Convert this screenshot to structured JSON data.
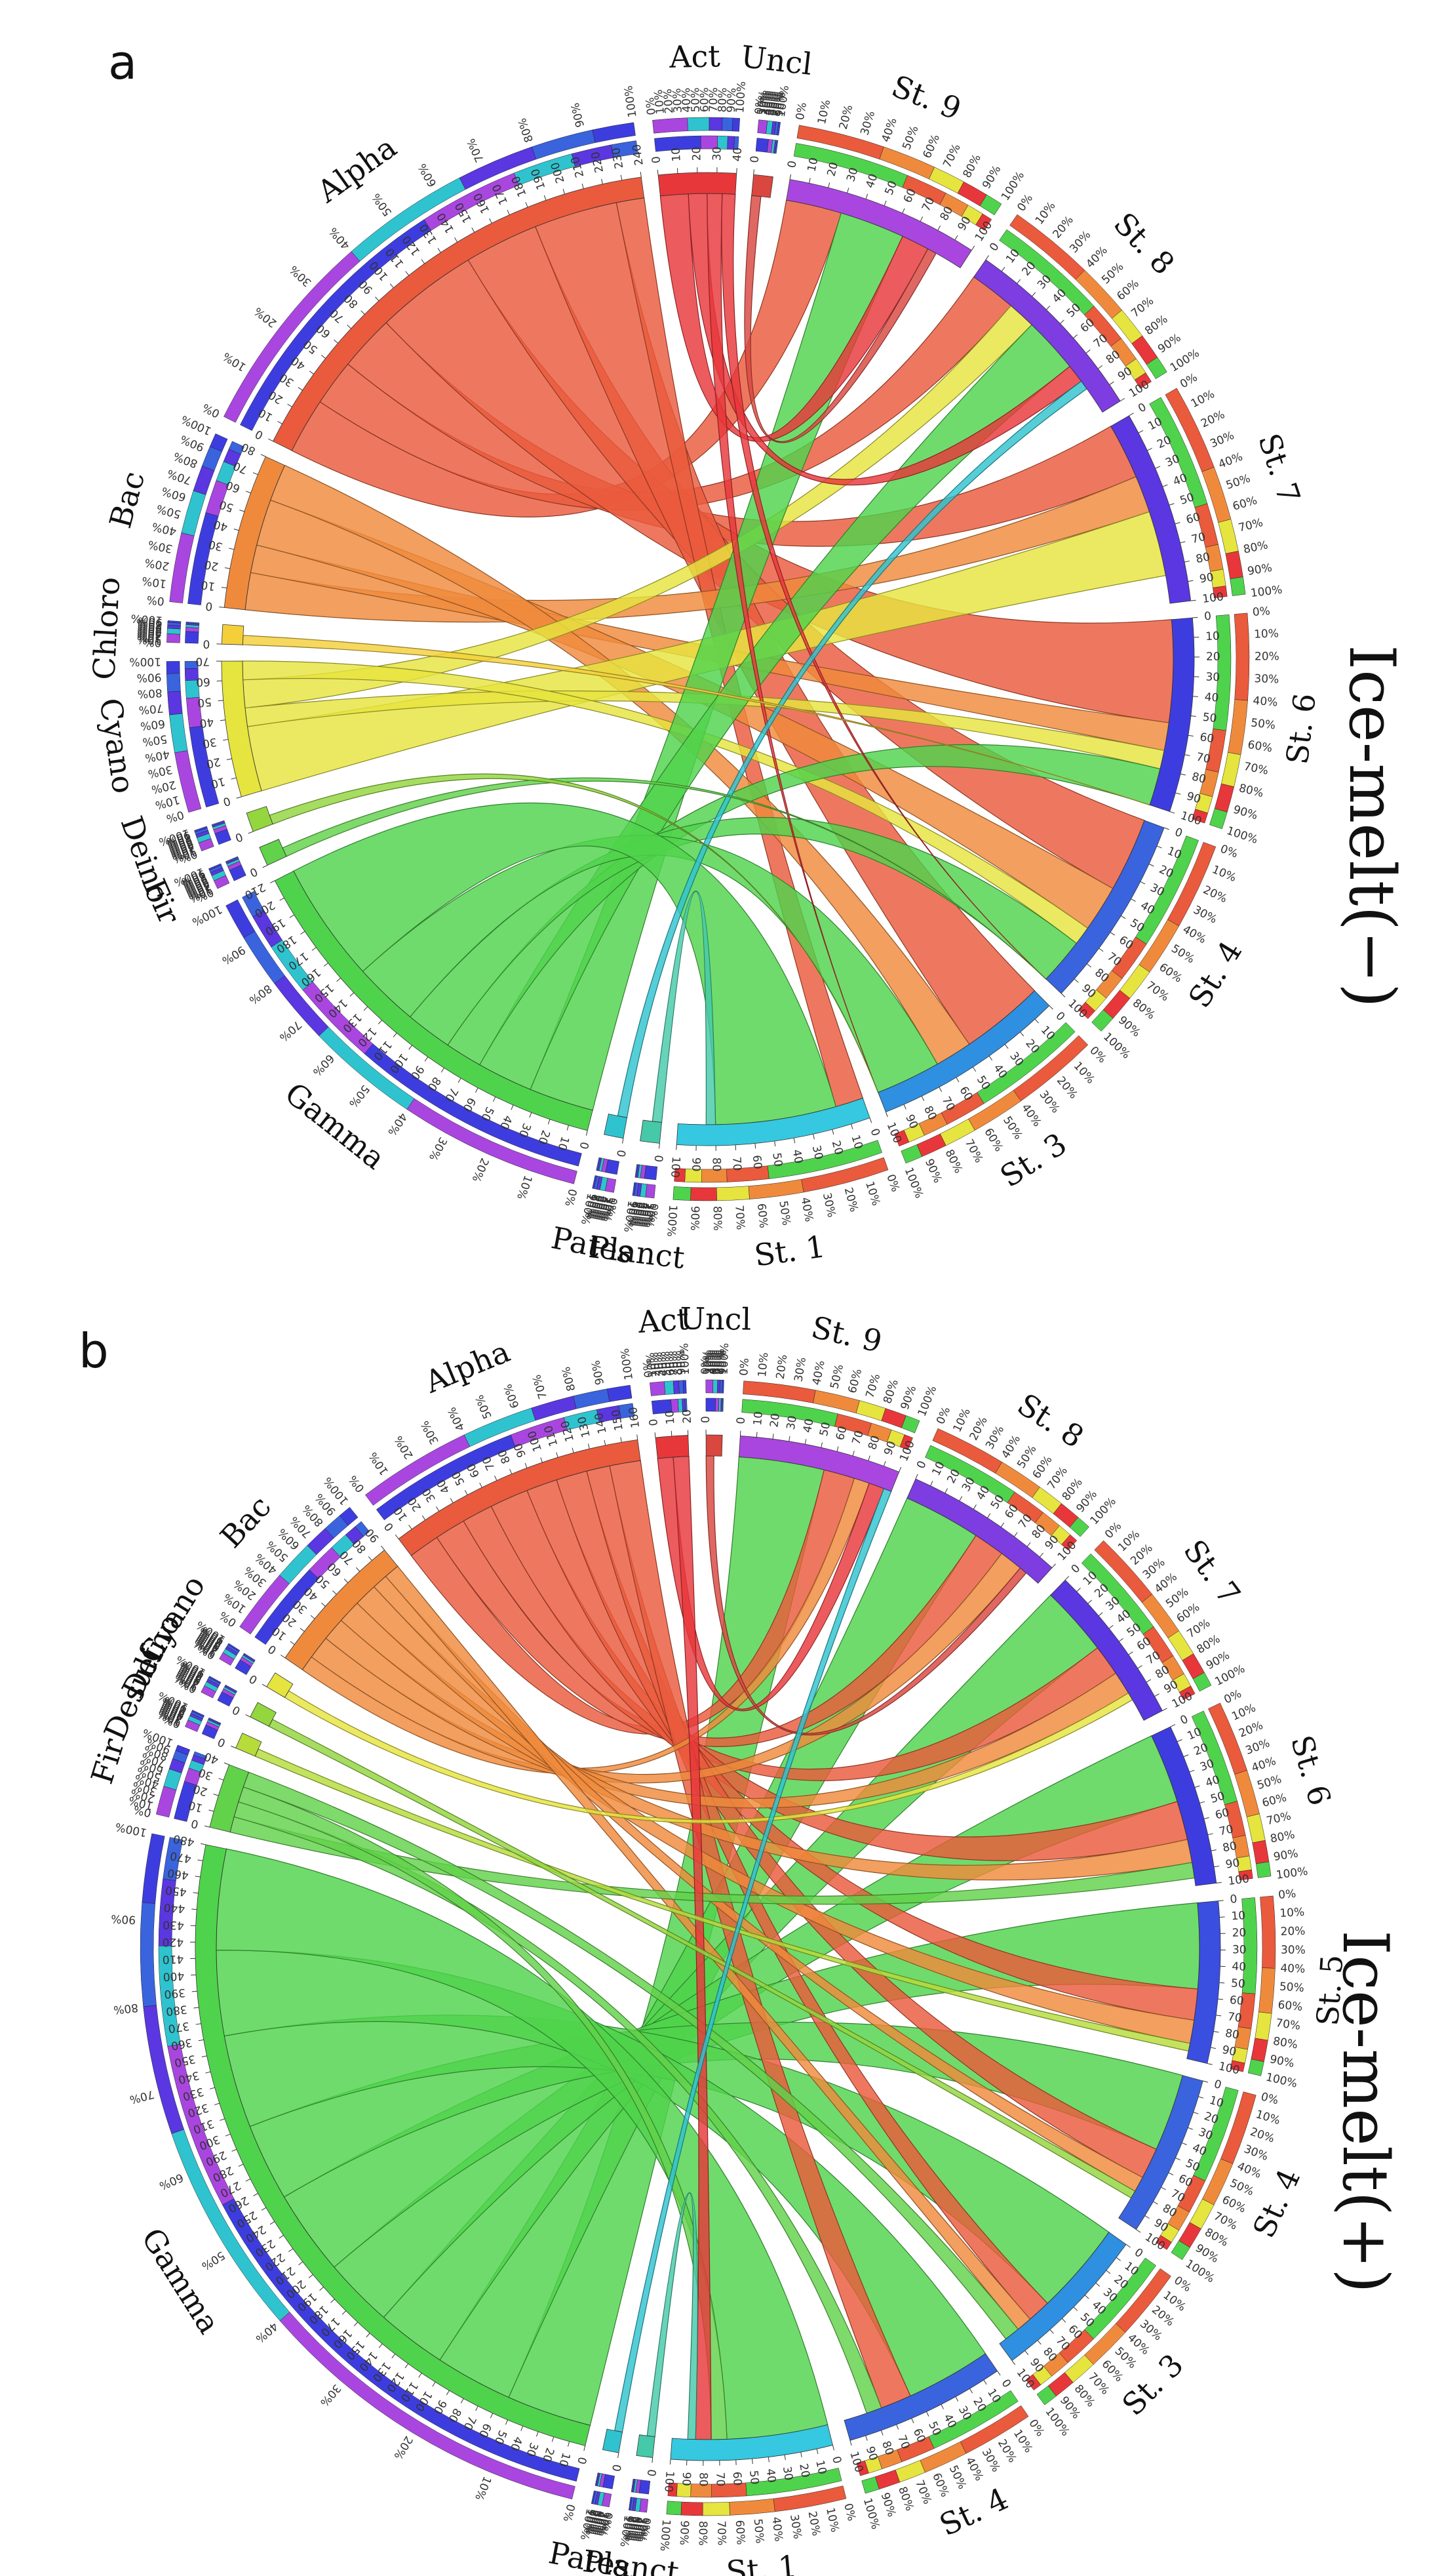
{
  "colors": {
    "Act": "#e8373a",
    "Uncl": "#d9473f",
    "Alpha": "#ea5a3c",
    "Bac": "#ef8a3c",
    "Chloro": "#f4cf3a",
    "Cyano": "#e6e43e",
    "Deino": "#93d63e",
    "Desulf": "#b6dc3a",
    "Fir": "#62d24a",
    "Gamma": "#4fd34c",
    "Planct": "#45c9a8",
    "Pates": "#2fc3cf",
    "St.9": "#a946e0",
    "St.8": "#7d3de0",
    "St.7": "#5a37e0",
    "St.6": "#3d3ddf",
    "St.5": "#3a4ee0",
    "St.4": "#3a63de",
    "St.3": "#2f8fe0",
    "St.1": "#35c8e0"
  },
  "panels": [
    {
      "letter": "a",
      "side_title": "Ice-melt(−)",
      "segments": [
        {
          "id": "Act",
          "label": "Act",
          "size": 40,
          "ticks": [
            "0",
            "10",
            "20",
            "30",
            "40"
          ]
        },
        {
          "id": "Uncl",
          "label": "Uncl",
          "size": 10,
          "ticks": [
            "0"
          ]
        },
        {
          "id": "St.9",
          "label": "St. 9",
          "size": 100,
          "ticks": [
            "0",
            "10",
            "20",
            "30",
            "40",
            "50",
            "60",
            "70",
            "80",
            "90",
            "100"
          ]
        },
        {
          "id": "St.8",
          "label": "St. 8",
          "size": 100,
          "ticks": [
            "0",
            "10",
            "20",
            "30",
            "40",
            "50",
            "60",
            "70",
            "80",
            "90",
            "100"
          ]
        },
        {
          "id": "St.7",
          "label": "St. 7",
          "size": 100,
          "ticks": [
            "0",
            "10",
            "20",
            "30",
            "40",
            "50",
            "60",
            "70",
            "80",
            "90",
            "100"
          ]
        },
        {
          "id": "St.6",
          "label": "St. 6",
          "size": 100,
          "ticks": [
            "0",
            "10",
            "20",
            "30",
            "40",
            "50",
            "60",
            "70",
            "80",
            "90",
            "100"
          ]
        },
        {
          "id": "St.4",
          "label": "St. 4",
          "size": 100,
          "ticks": [
            "0",
            "10",
            "20",
            "30",
            "40",
            "50",
            "60",
            "70",
            "80",
            "90",
            "100"
          ]
        },
        {
          "id": "St.3",
          "label": "St. 3",
          "size": 100,
          "ticks": [
            "0",
            "10",
            "20",
            "30",
            "40",
            "50",
            "60",
            "70",
            "80",
            "90",
            "100"
          ]
        },
        {
          "id": "St.1",
          "label": "St. 1",
          "size": 100,
          "ticks": [
            "0",
            "10",
            "20",
            "30",
            "40",
            "50",
            "60",
            "70",
            "80",
            "90",
            "100"
          ]
        },
        {
          "id": "Planct",
          "label": "Planct",
          "size": 10,
          "ticks": [
            "0"
          ]
        },
        {
          "id": "Pates",
          "label": "Pates",
          "size": 10,
          "ticks": [
            "0"
          ]
        },
        {
          "id": "Gamma",
          "label": "Gamma",
          "size": 210,
          "ticks": [
            "0",
            "10",
            "20",
            "30",
            "40",
            "50",
            "60",
            "70",
            "80",
            "90",
            "100",
            "110",
            "120",
            "130",
            "140",
            "150",
            "160",
            "170",
            "180",
            "190",
            "200",
            "210"
          ]
        },
        {
          "id": "Fir",
          "label": "Fir",
          "size": 10,
          "ticks": [
            "0"
          ]
        },
        {
          "id": "Deino",
          "label": "Deino",
          "size": 10,
          "ticks": [
            "0"
          ]
        },
        {
          "id": "Cyano",
          "label": "Cyano",
          "size": 70,
          "ticks": [
            "0",
            "10",
            "20",
            "30",
            "40",
            "50",
            "60",
            "70"
          ]
        },
        {
          "id": "Chloro",
          "label": "Chloro",
          "size": 10,
          "ticks": [
            "0"
          ]
        },
        {
          "id": "Bac",
          "label": "Bac",
          "size": 80,
          "ticks": [
            "0",
            "10",
            "20",
            "30",
            "40",
            "50",
            "60",
            "70",
            "80"
          ]
        },
        {
          "id": "Alpha",
          "label": "Alpha",
          "size": 240,
          "ticks": [
            "0",
            "10",
            "20",
            "30",
            "40",
            "50",
            "60",
            "70",
            "80",
            "90",
            "100",
            "110",
            "120",
            "130",
            "140",
            "150",
            "160",
            "170",
            "180",
            "190",
            "200",
            "210",
            "220",
            "230",
            "240"
          ]
        }
      ],
      "percent_ticks": [
        "0%",
        "10%",
        "20%",
        "30%",
        "40%",
        "50%",
        "60%",
        "70%",
        "80%",
        "90%",
        "100%"
      ],
      "links": [
        {
          "from": "Alpha",
          "to": "St.9",
          "value": 30
        },
        {
          "from": "Alpha",
          "to": "St.8",
          "value": 25
        },
        {
          "from": "Alpha",
          "to": "St.7",
          "value": 30
        },
        {
          "from": "Alpha",
          "to": "St.6",
          "value": 55
        },
        {
          "from": "Alpha",
          "to": "St.4",
          "value": 40
        },
        {
          "from": "Alpha",
          "to": "St.3",
          "value": 45
        },
        {
          "from": "Alpha",
          "to": "St.1",
          "value": 15
        },
        {
          "from": "Bac",
          "to": "St.7",
          "value": 20
        },
        {
          "from": "Bac",
          "to": "St.6",
          "value": 15
        },
        {
          "from": "Bac",
          "to": "St.4",
          "value": 25
        },
        {
          "from": "Bac",
          "to": "St.3",
          "value": 20
        },
        {
          "from": "Cyano",
          "to": "St.7",
          "value": 35
        },
        {
          "from": "Cyano",
          "to": "St.6",
          "value": 10
        },
        {
          "from": "Cyano",
          "to": "St.8",
          "value": 15
        },
        {
          "from": "Cyano",
          "to": "St.4",
          "value": 10
        },
        {
          "from": "Gamma",
          "to": "St.9",
          "value": 35
        },
        {
          "from": "Gamma",
          "to": "St.8",
          "value": 30
        },
        {
          "from": "Gamma",
          "to": "St.6",
          "value": 20
        },
        {
          "from": "Gamma",
          "to": "St.4",
          "value": 25
        },
        {
          "from": "Gamma",
          "to": "St.3",
          "value": 35
        },
        {
          "from": "Gamma",
          "to": "St.1",
          "value": 65
        },
        {
          "from": "Act",
          "to": "St.9",
          "value": 15
        },
        {
          "from": "Act",
          "to": "St.8",
          "value": 10
        },
        {
          "from": "Act",
          "to": "St.3",
          "value": 8
        },
        {
          "from": "Act",
          "to": "St.4",
          "value": 7
        },
        {
          "from": "Planct",
          "to": "St.1",
          "value": 5
        },
        {
          "from": "Pates",
          "to": "St.8",
          "value": 5
        },
        {
          "from": "Uncl",
          "to": "St.9",
          "value": 5
        },
        {
          "from": "Fir",
          "to": "St.4",
          "value": 5
        },
        {
          "from": "Deino",
          "to": "St.3",
          "value": 5
        },
        {
          "from": "Chloro",
          "to": "St.6",
          "value": 5
        }
      ]
    },
    {
      "letter": "b",
      "side_title": "Ice-melt(+)",
      "segments": [
        {
          "id": "Act",
          "label": "Act",
          "size": 20,
          "ticks": [
            "0",
            "10",
            "20"
          ]
        },
        {
          "id": "Uncl",
          "label": "Uncl",
          "size": 10,
          "ticks": [
            "0"
          ]
        },
        {
          "id": "St.9",
          "label": "St. 9",
          "size": 100,
          "ticks": [
            "0",
            "10",
            "20",
            "30",
            "40",
            "50",
            "60",
            "70",
            "80",
            "90",
            "100"
          ]
        },
        {
          "id": "St.8",
          "label": "St. 8",
          "size": 100,
          "ticks": [
            "0",
            "10",
            "20",
            "30",
            "40",
            "50",
            "60",
            "70",
            "80",
            "90",
            "100"
          ]
        },
        {
          "id": "St.7",
          "label": "St. 7",
          "size": 100,
          "ticks": [
            "0",
            "10",
            "20",
            "30",
            "40",
            "50",
            "60",
            "70",
            "80",
            "90",
            "100"
          ]
        },
        {
          "id": "St.6",
          "label": "St. 6",
          "size": 100,
          "ticks": [
            "0",
            "10",
            "20",
            "30",
            "40",
            "50",
            "60",
            "70",
            "80",
            "90",
            "100"
          ]
        },
        {
          "id": "St.5",
          "label": "St. 5",
          "size": 100,
          "ticks": [
            "0",
            "10",
            "20",
            "30",
            "40",
            "50",
            "60",
            "70",
            "80",
            "90",
            "100"
          ]
        },
        {
          "id": "St.4",
          "label": "St. 4",
          "size": 100,
          "ticks": [
            "0",
            "10",
            "20",
            "30",
            "40",
            "50",
            "60",
            "70",
            "80",
            "90",
            "100"
          ]
        },
        {
          "id": "St.3",
          "label": "St. 3",
          "size": 100,
          "ticks": [
            "0",
            "10",
            "20",
            "30",
            "40",
            "50",
            "60",
            "70",
            "80",
            "90",
            "100"
          ]
        },
        {
          "id": "St.4b",
          "label": "St. 4",
          "size": 100,
          "ticks": [
            "0",
            "10",
            "20",
            "30",
            "40",
            "50",
            "60",
            "70",
            "80",
            "90",
            "100"
          ]
        },
        {
          "id": "St.1",
          "label": "St. 1",
          "size": 100,
          "ticks": [
            "0",
            "10",
            "20",
            "30",
            "40",
            "50",
            "60",
            "70",
            "80",
            "90",
            "100"
          ]
        },
        {
          "id": "Planct",
          "label": "Planct",
          "size": 10,
          "ticks": [
            "0"
          ]
        },
        {
          "id": "Pates",
          "label": "Pates",
          "size": 10,
          "ticks": [
            "0"
          ]
        },
        {
          "id": "Gamma",
          "label": "Gamma",
          "size": 480,
          "ticks": [
            "0",
            "10",
            "20",
            "30",
            "40",
            "50",
            "60",
            "70",
            "80",
            "90",
            "100",
            "110",
            "120",
            "130",
            "140",
            "150",
            "160",
            "170",
            "180",
            "190",
            "200",
            "210",
            "220",
            "230",
            "240",
            "250",
            "260",
            "270",
            "280",
            "290",
            "300",
            "310",
            "320",
            "330",
            "340",
            "350",
            "360",
            "370",
            "380",
            "390",
            "400",
            "410",
            "420",
            "430",
            "440",
            "450",
            "460",
            "470",
            "480"
          ]
        },
        {
          "id": "Fir",
          "label": "Fir",
          "size": 40,
          "ticks": [
            "0",
            "10",
            "20",
            "30",
            "40"
          ]
        },
        {
          "id": "Desulf",
          "label": "Desulf",
          "size": 10,
          "ticks": [
            "0"
          ]
        },
        {
          "id": "Deino",
          "label": "Deino",
          "size": 10,
          "ticks": [
            "0"
          ]
        },
        {
          "id": "Cyano",
          "label": "Cyano",
          "size": 10,
          "ticks": [
            "0"
          ]
        },
        {
          "id": "Bac",
          "label": "Bac",
          "size": 90,
          "ticks": [
            "0",
            "10",
            "20",
            "30",
            "40",
            "50",
            "60",
            "70",
            "80",
            "90"
          ]
        },
        {
          "id": "Alpha",
          "label": "Alpha",
          "size": 160,
          "ticks": [
            "0",
            "10",
            "20",
            "30",
            "40",
            "50",
            "60",
            "70",
            "80",
            "90",
            "100",
            "110",
            "120",
            "130",
            "140",
            "150",
            "160"
          ]
        }
      ],
      "percent_ticks": [
        "0%",
        "10%",
        "20%",
        "30%",
        "40%",
        "50%",
        "60%",
        "70%",
        "80%",
        "90%",
        "100%"
      ],
      "links": [
        {
          "from": "Gamma",
          "to": "St.9",
          "value": 55
        },
        {
          "from": "Gamma",
          "to": "St.8",
          "value": 50
        },
        {
          "from": "Gamma",
          "to": "St.7",
          "value": 45
        },
        {
          "from": "Gamma",
          "to": "St.6",
          "value": 45
        },
        {
          "from": "Gamma",
          "to": "St.5",
          "value": 55
        },
        {
          "from": "Gamma",
          "to": "St.4",
          "value": 50
        },
        {
          "from": "Gamma",
          "to": "St.3",
          "value": 60
        },
        {
          "from": "Gamma",
          "to": "St.4b",
          "value": 55
        },
        {
          "from": "Gamma",
          "to": "St.1",
          "value": 65
        },
        {
          "from": "Alpha",
          "to": "St.9",
          "value": 20
        },
        {
          "from": "Alpha",
          "to": "St.8",
          "value": 20
        },
        {
          "from": "Alpha",
          "to": "St.7",
          "value": 20
        },
        {
          "from": "Alpha",
          "to": "St.6",
          "value": 25
        },
        {
          "from": "Alpha",
          "to": "St.5",
          "value": 20
        },
        {
          "from": "Alpha",
          "to": "St.4",
          "value": 20
        },
        {
          "from": "Alpha",
          "to": "St.3",
          "value": 15
        },
        {
          "from": "Alpha",
          "to": "St.4b",
          "value": 20
        },
        {
          "from": "Bac",
          "to": "St.9",
          "value": 10
        },
        {
          "from": "Bac",
          "to": "St.8",
          "value": 15
        },
        {
          "from": "Bac",
          "to": "St.7",
          "value": 15
        },
        {
          "from": "Bac",
          "to": "St.6",
          "value": 15
        },
        {
          "from": "Bac",
          "to": "St.5",
          "value": 15
        },
        {
          "from": "Bac",
          "to": "St.4",
          "value": 10
        },
        {
          "from": "Bac",
          "to": "St.3",
          "value": 10
        },
        {
          "from": "Fir",
          "to": "St.6",
          "value": 10
        },
        {
          "from": "Fir",
          "to": "St.4b",
          "value": 10
        },
        {
          "from": "Fir",
          "to": "St.1",
          "value": 10
        },
        {
          "from": "Fir",
          "to": "St.3",
          "value": 10
        },
        {
          "from": "Act",
          "to": "St.9",
          "value": 10
        },
        {
          "from": "Act",
          "to": "St.1",
          "value": 10
        },
        {
          "from": "Uncl",
          "to": "St.8",
          "value": 5
        },
        {
          "from": "Desulf",
          "to": "St.5",
          "value": 5
        },
        {
          "from": "Deino",
          "to": "St.4",
          "value": 5
        },
        {
          "from": "Cyano",
          "to": "St.7",
          "value": 5
        },
        {
          "from": "Planct",
          "to": "St.1",
          "value": 5
        },
        {
          "from": "Pates",
          "to": "St.9",
          "value": 5
        }
      ]
    }
  ]
}
